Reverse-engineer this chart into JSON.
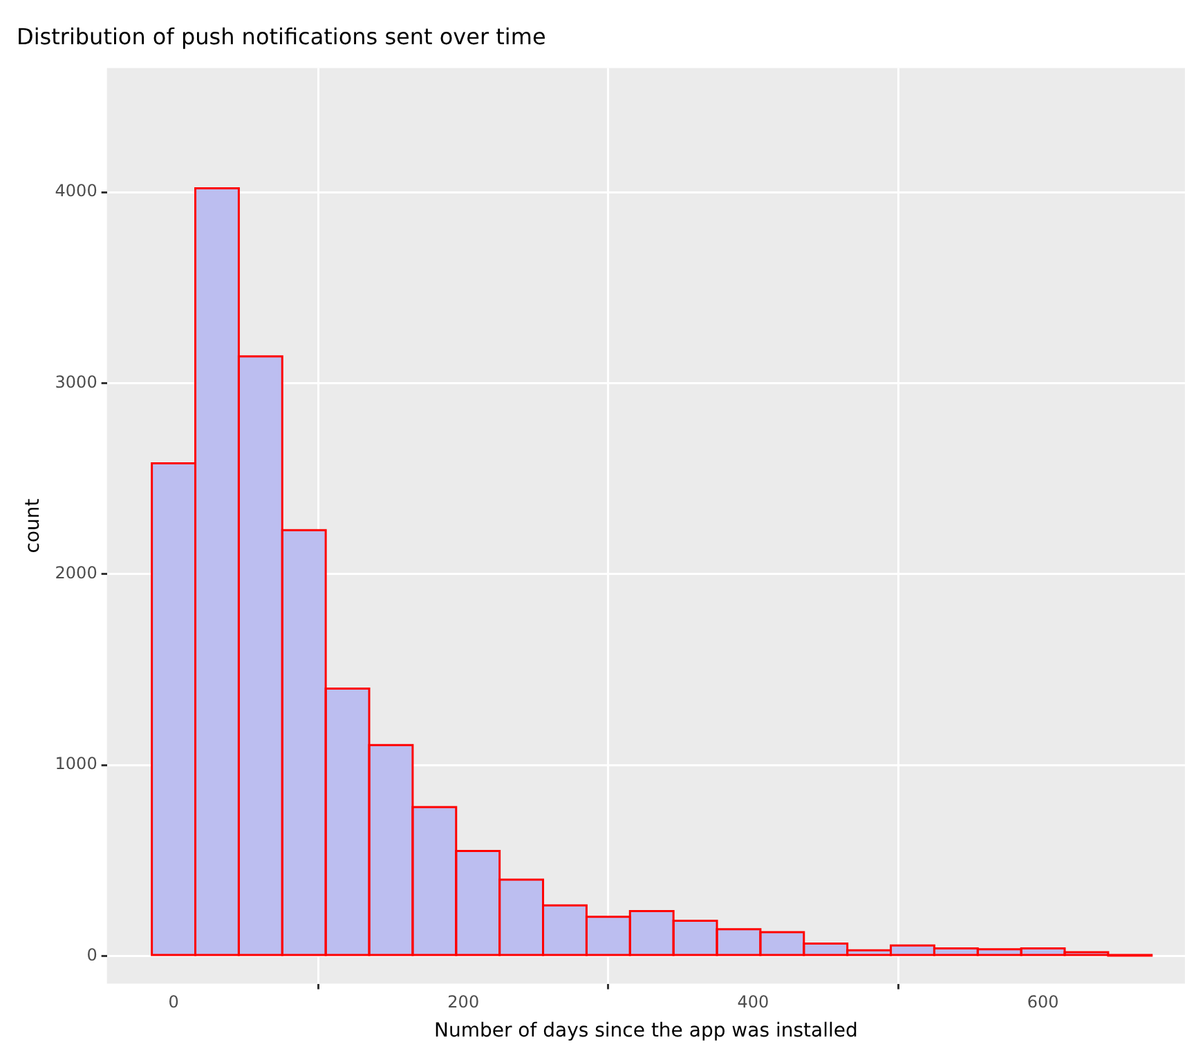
{
  "chart_data": {
    "type": "histogram",
    "title": "Distribution of push notifications sent over time",
    "xlabel": "Number of days since the app was installed",
    "ylabel": "count",
    "bins": [
      -15,
      15,
      45,
      75,
      105,
      135,
      165,
      195,
      225,
      255,
      285,
      315,
      345,
      375,
      405,
      435,
      465,
      495,
      525,
      555,
      585,
      615,
      645,
      675
    ],
    "values": [
      2580,
      4020,
      3140,
      2230,
      1400,
      1105,
      780,
      550,
      400,
      265,
      205,
      235,
      185,
      140,
      125,
      65,
      30,
      55,
      40,
      35,
      40,
      20,
      2
    ],
    "color": "#bcbef0",
    "xlim": [
      -46,
      698
    ],
    "xticks": [
      0,
      200,
      400,
      600
    ],
    "ylim": [
      -145,
      4650
    ],
    "yticks": [
      0,
      1000,
      2000,
      3000,
      4000
    ],
    "grid": true
  }
}
